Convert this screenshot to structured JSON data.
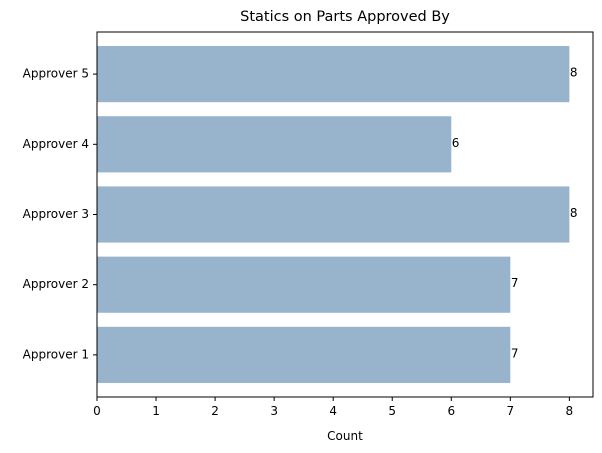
{
  "chart_data": {
    "type": "bar",
    "orientation": "horizontal",
    "title": "Statics on Parts Approved By",
    "xlabel": "Count",
    "ylabel": "",
    "categories": [
      "Approver 1",
      "Approver 2",
      "Approver 3",
      "Approver 4",
      "Approver 5"
    ],
    "values": [
      7,
      7,
      8,
      6,
      8
    ],
    "data_labels": [
      "7",
      "7",
      "8",
      "6",
      "8"
    ],
    "xlim": [
      0,
      8.4
    ],
    "x_ticks": [
      0,
      1,
      2,
      3,
      4,
      5,
      6,
      7,
      8
    ],
    "grid": false,
    "legend": "none",
    "bar_color": "#98B3CC"
  }
}
